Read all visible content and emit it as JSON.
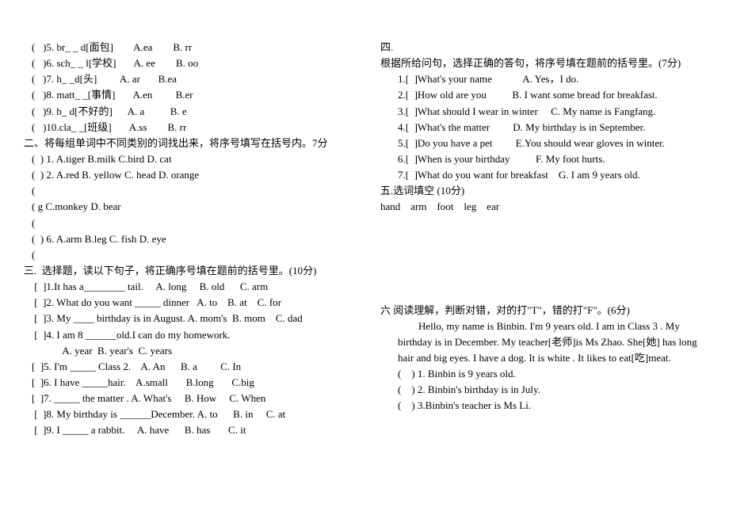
{
  "left": {
    "q5": "(   )5. br_ _ d[面包]        A.ea        B. rr",
    "q6": "(   )6. sch_ _ l[学校]       A. ee        B. oo",
    "q7": "(   )7. h_ _d[头]         A. ar       B.ea",
    "q8": "(   )8. matt_ _[事情]       A.en         B.er",
    "q9": "(   )9. b_ d[不好的]      A. a          B. e",
    "q10": "(   )10.cla_ _[班级]       A.ss        B. rr",
    "sec2_title": "二、将每组单词中不同类别的词找出来，将序号填写在括号内。7分",
    "s2_1": "(  ) 1. A.tiger B.milk C.bird D. cat",
    "s2_2": "(  ) 2. A.red B. yellow C. head D. orange",
    "s2_3a": "(",
    "s2_3b": "( g C.monkey D. bear",
    "s2_4a": "(",
    "s2_6": "(  ) 6. A.arm B.leg C. fish D. eye",
    "s2_7a": "(",
    "sec3_title": "三.  选择题，读以下句子，将正确序号填在题前的括号里。(10分)",
    "s3_1": " [  ]1.It has a________ tail.     A. long     B. old      C. arm",
    "s3_2": " [  ]2. What do you want _____ dinner   A. to    B. at    C. for",
    "s3_3": " [  ]3. My ____ birthday is in August. A. mom's  B. mom    C. dad",
    "s3_4a": " [  ]4. I am 8 ______old.I can do my homework.",
    "s3_4b": "            A. year  B. year's  C. years",
    "s3_5": "[  ]5. I'm _____ Class 2.    A. An      B. a         C. In",
    "s3_6": "[  ]6. I have _____hair.    A.small       B.long       C.big",
    "s3_7": "[  ]7. _____ the matter . A. What's     B. How     C. When",
    "s3_8": " [  ]8. My birthday is ______December. A. to      B. in     C. at",
    "s3_9": " [  ]9. I _____ a rabbit.     A. have      B. has       C. it"
  },
  "right": {
    "sec4_title": "四.",
    "sec4_sub": "根据所给问句，选择正确的答句，将序号填在题前的括号里。(7分)",
    "s4_1": "1.[  ]What's your name            A. Yes，I do.",
    "s4_2": "2.[  ]How old are you          B. I want some bread for breakfast.",
    "s4_3": "3.[  ]What should I wear in winter     C. My name is Fangfang.",
    "s4_4": "4.[  ]What's the matter         D. My birthday is in September.",
    "s4_5": "5.[  ]Do you have a pet         E.You should wear gloves in winter.",
    "s4_6": "6.[  ]When is your birthday          F. My foot hurts.",
    "s4_7": "7.[  ]What do you want for breakfast    G. I am 9 years old.",
    "sec5_title": "五.选词填空 (10分)",
    "sec5_words": "hand    arm    foot    leg    ear",
    "sec6_title": "六 阅读理解，判断对错，对的打\"T\"，错的打\"F\"。(6分)",
    "sec6_para": "Hello, my name is Binbin.  I'm 9 years old.  I am in Class 3 .  My birthday is in December.  My teacher[老师]is Ms Zhao. She[她] has long hair and big eyes.  I have a dog. It is white . It likes to eat[吃]meat.",
    "s6_1": "(    ) 1. Binbin is 9 years old.",
    "s6_2": "(    ) 2. Binbin's birthday is in July.",
    "s6_3": "(    ) 3.Binbin's teacher is Ms Li."
  }
}
